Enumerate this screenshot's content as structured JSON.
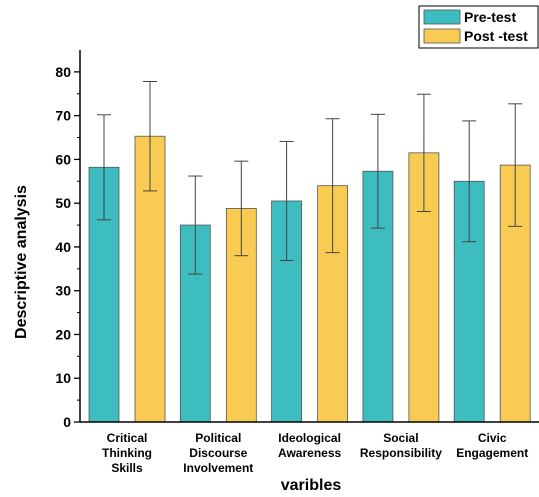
{
  "chart_data": {
    "type": "bar",
    "categories": [
      [
        "Critical",
        "Thinking",
        "Skills"
      ],
      [
        "Political",
        "Discourse",
        "Involvement"
      ],
      [
        "Ideological",
        "Awareness"
      ],
      [
        "Social",
        "Responsibility"
      ],
      [
        "Civic",
        "Engagement"
      ]
    ],
    "series": [
      {
        "name": "Pre-test",
        "color": "#3dbdbf",
        "values": [
          58.2,
          45.0,
          50.5,
          57.3,
          55.0
        ],
        "errors": [
          12.0,
          11.2,
          13.6,
          13.0,
          13.8
        ]
      },
      {
        "name": "Post -test",
        "color": "#f9cb52",
        "values": [
          65.3,
          48.8,
          54.0,
          61.5,
          58.7
        ],
        "errors": [
          12.5,
          10.8,
          15.3,
          13.4,
          14.0
        ]
      }
    ],
    "xlabel": "varibles",
    "ylabel": "Descriptive analysis",
    "ylim": [
      0,
      85
    ],
    "yticks": [
      0,
      10,
      20,
      30,
      40,
      50,
      60,
      70,
      80
    ],
    "grid": false,
    "legend_position": "top-right"
  }
}
